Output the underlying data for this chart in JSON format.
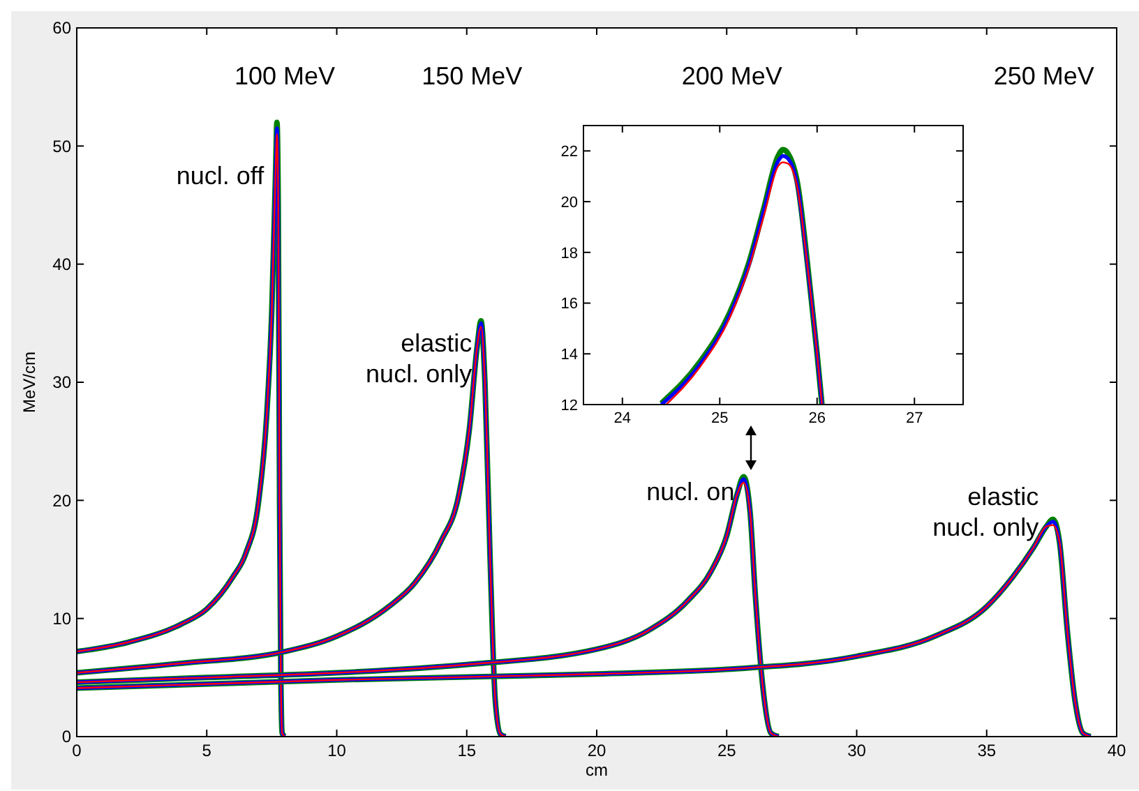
{
  "chart_data": [
    {
      "type": "line",
      "xlabel": "cm",
      "ylabel": "MeV/cm",
      "xlim": [
        0,
        40
      ],
      "ylim": [
        0,
        60
      ],
      "xticks": [
        0,
        5,
        10,
        15,
        20,
        25,
        30,
        35,
        40
      ],
      "yticks": [
        0,
        10,
        20,
        30,
        40,
        50,
        60
      ],
      "series": [
        {
          "color": "#008000",
          "x": [
            0,
            2,
            4,
            5,
            6,
            6.5,
            7,
            7.3,
            7.5,
            7.65,
            7.7,
            7.75,
            7.8,
            7.85,
            7.9,
            8
          ],
          "values": [
            7.2,
            8,
            9.5,
            10.8,
            13.5,
            15.5,
            20,
            27,
            36,
            48,
            52,
            45,
            20,
            5,
            0.3,
            0
          ]
        },
        {
          "color": "#0000ff",
          "x": [
            0,
            2,
            4,
            5,
            6,
            6.5,
            7,
            7.3,
            7.5,
            7.65,
            7.7,
            7.75,
            7.8,
            7.85,
            7.9,
            8
          ],
          "values": [
            7.2,
            8,
            9.5,
            10.8,
            13.5,
            15.5,
            20,
            27,
            36,
            48,
            51.5,
            45,
            20,
            5,
            0.3,
            0
          ]
        },
        {
          "color": "#ff0000",
          "x": [
            0,
            2,
            4,
            5,
            6,
            6.5,
            7,
            7.3,
            7.5,
            7.65,
            7.7,
            7.75,
            7.8,
            7.85,
            7.9,
            8
          ],
          "values": [
            7.2,
            8,
            9.5,
            10.8,
            13.5,
            15.5,
            20,
            27,
            36,
            48,
            51,
            45,
            20,
            5,
            0.3,
            0
          ]
        },
        {
          "color": "#008000",
          "x": [
            0,
            4,
            8,
            10,
            12,
            13,
            14,
            14.7,
            15.1,
            15.4,
            15.55,
            15.7,
            15.9,
            16.1,
            16.3,
            16.5
          ],
          "values": [
            5.4,
            6.2,
            7.2,
            8.5,
            11,
            13,
            16.5,
            20.5,
            26,
            33,
            35.2,
            30,
            15,
            3,
            0.2,
            0
          ]
        },
        {
          "color": "#0000ff",
          "x": [
            0,
            4,
            8,
            10,
            12,
            13,
            14,
            14.7,
            15.1,
            15.4,
            15.55,
            15.7,
            15.9,
            16.1,
            16.3,
            16.5
          ],
          "values": [
            5.4,
            6.2,
            7.2,
            8.5,
            11,
            13,
            16.5,
            20.5,
            26,
            33,
            35,
            30,
            15,
            3,
            0.2,
            0
          ]
        },
        {
          "color": "#ff0000",
          "x": [
            0,
            4,
            8,
            10,
            12,
            13,
            14,
            14.7,
            15.1,
            15.4,
            15.55,
            15.7,
            15.9,
            16.1,
            16.3,
            16.5
          ],
          "values": [
            5.4,
            6.2,
            7.2,
            8.5,
            11,
            13,
            16.5,
            20.5,
            26,
            33,
            34.7,
            30,
            15,
            3,
            0.2,
            0
          ]
        },
        {
          "color": "#008000",
          "x": [
            0,
            5,
            10,
            15,
            20,
            22,
            23.5,
            24.4,
            25,
            25.4,
            25.65,
            25.9,
            26.1,
            26.4,
            26.7,
            27
          ],
          "values": [
            4.6,
            5,
            5.4,
            6.1,
            7.4,
            9,
            11.5,
            14,
            17,
            20.5,
            22,
            19,
            12,
            4,
            0.3,
            0
          ]
        },
        {
          "color": "#0000ff",
          "x": [
            0,
            5,
            10,
            15,
            20,
            22,
            23.5,
            24.4,
            25,
            25.4,
            25.65,
            25.9,
            26.1,
            26.4,
            26.7,
            27
          ],
          "values": [
            4.6,
            5,
            5.4,
            6.1,
            7.4,
            9,
            11.5,
            14,
            17,
            20.5,
            21.8,
            19,
            12,
            4,
            0.3,
            0
          ]
        },
        {
          "color": "#ff0000",
          "x": [
            0,
            5,
            10,
            15,
            20,
            22,
            23.5,
            24.4,
            25,
            25.4,
            25.65,
            25.9,
            26.1,
            26.4,
            26.7,
            27
          ],
          "values": [
            4.6,
            5,
            5.4,
            6.1,
            7.4,
            9,
            11.5,
            14,
            17,
            20.5,
            21.5,
            19,
            12,
            4,
            0.3,
            0
          ]
        },
        {
          "color": "#008000",
          "x": [
            0,
            10,
            20,
            25,
            30,
            33,
            35,
            36,
            36.8,
            37.3,
            37.55,
            37.8,
            38.1,
            38.4,
            38.7,
            39
          ],
          "values": [
            4.1,
            4.8,
            5.3,
            5.7,
            6.8,
            8.5,
            11,
            13.5,
            16,
            17.8,
            18.4,
            16.5,
            9,
            3,
            0.3,
            0
          ]
        },
        {
          "color": "#0000ff",
          "x": [
            0,
            10,
            20,
            25,
            30,
            33,
            35,
            36,
            36.8,
            37.3,
            37.55,
            37.8,
            38.1,
            38.4,
            38.7,
            39
          ],
          "values": [
            4.1,
            4.8,
            5.3,
            5.7,
            6.8,
            8.5,
            11,
            13.5,
            16,
            17.8,
            18.2,
            16.5,
            9,
            3,
            0.3,
            0
          ]
        },
        {
          "color": "#ff0000",
          "x": [
            0,
            10,
            20,
            25,
            30,
            33,
            35,
            36,
            36.8,
            37.3,
            37.55,
            37.8,
            38.1,
            38.4,
            38.7,
            39
          ],
          "values": [
            4.1,
            4.8,
            5.3,
            5.7,
            6.8,
            8.5,
            11,
            13.5,
            16,
            17.8,
            17.9,
            16.5,
            9,
            3,
            0.3,
            0
          ]
        }
      ],
      "annotations": [
        "100 MeV",
        "150 MeV",
        "200 MeV",
        "250 MeV",
        "nucl. off",
        {
          "text": "elastic\nnucl. only",
          "x": 15.2,
          "y": 30
        },
        {
          "text": "nucl. on",
          "x": 25.3,
          "y": 20
        },
        {
          "text": "elastic\nnucl. only",
          "x": 37,
          "y": 17
        }
      ]
    },
    {
      "type": "line",
      "xlim": [
        23.6,
        27.5
      ],
      "ylim": [
        12,
        23
      ],
      "xticks": [
        24,
        25,
        26,
        27
      ],
      "yticks": [
        12,
        14,
        16,
        18,
        20,
        22
      ],
      "series": [
        {
          "color": "#008000",
          "x": [
            24.4,
            24.8,
            25.1,
            25.3,
            25.45,
            25.6,
            25.65,
            25.7,
            25.8,
            25.9,
            26,
            26.05
          ],
          "values": [
            12.05,
            13.7,
            15.6,
            17.6,
            19.7,
            21.8,
            22.05,
            21.9,
            20.7,
            17.6,
            14,
            12
          ]
        },
        {
          "color": "#0000ff",
          "x": [
            24.4,
            24.8,
            25.1,
            25.3,
            25.45,
            25.6,
            25.65,
            25.7,
            25.8,
            25.9,
            26,
            26.05
          ],
          "values": [
            12,
            13.6,
            15.5,
            17.5,
            19.6,
            21.6,
            21.8,
            21.7,
            20.6,
            17.5,
            14,
            12
          ]
        },
        {
          "color": "#ff0000",
          "x": [
            24.45,
            24.8,
            25.1,
            25.3,
            25.45,
            25.6,
            25.65,
            25.7,
            25.8,
            25.9,
            26,
            26.05
          ],
          "values": [
            12,
            13.5,
            15.4,
            17.4,
            19.4,
            21.4,
            21.55,
            21.5,
            20.5,
            17.5,
            14,
            12
          ]
        }
      ]
    }
  ]
}
